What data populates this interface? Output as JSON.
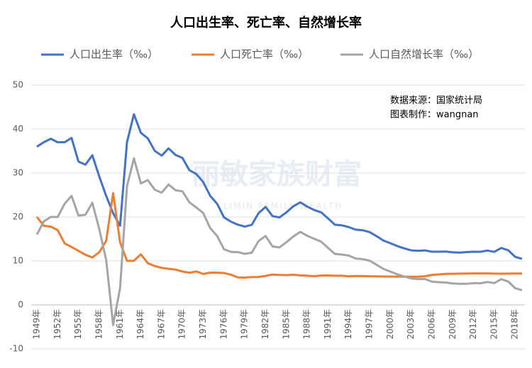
{
  "chart_data": {
    "type": "line",
    "title": "人口出生率、死亡率、自然增长率",
    "annotations": [
      "数据来源：国家统计局",
      "图表制作：wangnan"
    ],
    "watermark": "丽敏家族财富",
    "watermark_subtitle": "LIMIN FAMILY WEALTH",
    "legend": "top",
    "grid": true,
    "categories": [
      "1949年",
      null,
      null,
      "1952年",
      null,
      null,
      "1955年",
      null,
      null,
      "1958年",
      null,
      null,
      "1961年",
      null,
      null,
      "1964年",
      null,
      null,
      "1967年",
      null,
      null,
      "1970年",
      null,
      null,
      "1973年",
      null,
      null,
      "1976年",
      null,
      null,
      "1979年",
      null,
      null,
      "1982年",
      null,
      null,
      "1985年",
      null,
      null,
      "1988年",
      null,
      null,
      "1991年",
      null,
      null,
      "1994年",
      null,
      null,
      "1997年",
      null,
      null,
      "2000年",
      null,
      null,
      "2003年",
      null,
      null,
      "2006年",
      null,
      null,
      "2009年",
      null,
      null,
      "2012年",
      null,
      null,
      "2015年",
      null,
      null,
      "2018年",
      null
    ],
    "ylim": [
      -10,
      50
    ],
    "yticks": [
      -10,
      0,
      10,
      20,
      30,
      40,
      50
    ],
    "series": [
      {
        "name": "人口出生率（‰）",
        "color": "#4472c4",
        "values": [
          36,
          37,
          37.8,
          37,
          37,
          37.97,
          32.6,
          31.9,
          34.03,
          29.22,
          24.78,
          20.86,
          18.02,
          37.01,
          43.37,
          39.14,
          37.88,
          35.05,
          33.96,
          35.59,
          34.11,
          33.43,
          30.65,
          29.77,
          27.93,
          24.82,
          23.01,
          19.91,
          18.93,
          18.25,
          17.82,
          18.21,
          20.91,
          22.28,
          20.19,
          19.9,
          21.04,
          22.43,
          23.33,
          22.37,
          21.58,
          21.06,
          19.68,
          18.24,
          18.09,
          17.7,
          17.12,
          16.98,
          16.57,
          15.64,
          14.64,
          14.03,
          13.38,
          12.86,
          12.41,
          12.29,
          12.4,
          12.09,
          12.1,
          12.14,
          11.95,
          11.9,
          12.02,
          12.1,
          12.08,
          12.37,
          12.07,
          12.95,
          12.43,
          10.94,
          10.48
        ]
      },
      {
        "name": "人口死亡率（‰）",
        "color": "#ed7d31",
        "values": [
          20,
          18,
          17.8,
          17,
          14,
          13.18,
          12.28,
          11.4,
          10.8,
          11.98,
          14.59,
          25.43,
          14.24,
          10.02,
          10.04,
          11.5,
          9.5,
          8.83,
          8.43,
          8.21,
          8.03,
          7.6,
          7.32,
          7.61,
          7.04,
          7.34,
          7.32,
          7.25,
          6.87,
          6.25,
          6.21,
          6.34,
          6.36,
          6.6,
          6.9,
          6.82,
          6.78,
          6.86,
          6.72,
          6.64,
          6.54,
          6.67,
          6.7,
          6.64,
          6.64,
          6.49,
          6.57,
          6.56,
          6.51,
          6.5,
          6.46,
          6.45,
          6.43,
          6.41,
          6.4,
          6.42,
          6.51,
          6.81,
          6.93,
          7.06,
          7.08,
          7.11,
          7.14,
          7.15,
          7.16,
          7.16,
          7.11,
          7.09,
          7.11,
          7.13,
          7.14
        ]
      },
      {
        "name": "人口自然增长率（‰）",
        "color": "#a5a5a5",
        "values": [
          16,
          19,
          20,
          20,
          23,
          24.79,
          20.32,
          20.5,
          23.23,
          17.24,
          10.19,
          -4.57,
          3.78,
          26.99,
          33.33,
          27.64,
          28.38,
          26.22,
          25.53,
          27.38,
          26.08,
          25.83,
          23.33,
          22.16,
          20.89,
          17.48,
          15.69,
          12.66,
          12.06,
          12,
          11.61,
          11.87,
          14.55,
          15.68,
          13.29,
          13.08,
          14.26,
          15.57,
          16.61,
          15.73,
          15.04,
          14.39,
          12.98,
          11.6,
          11.45,
          11.21,
          10.55,
          10.42,
          10.06,
          9.14,
          8.18,
          7.58,
          6.95,
          6.45,
          6.01,
          5.87,
          5.89,
          5.28,
          5.17,
          5.08,
          4.87,
          4.79,
          4.79,
          4.95,
          4.92,
          5.21,
          4.96,
          5.86,
          5.32,
          3.81,
          3.34
        ]
      }
    ]
  }
}
